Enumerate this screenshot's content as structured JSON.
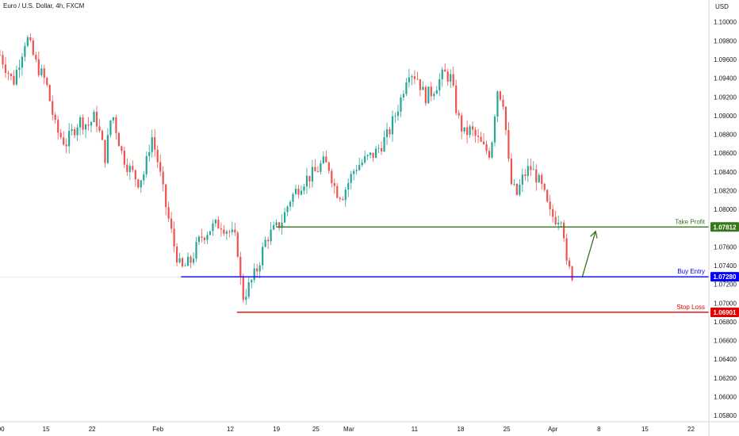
{
  "header": {
    "symbol": "Euro / U.S. Dollar, 4h, FXCM",
    "currency": "USD"
  },
  "colors": {
    "up": "#26a69a",
    "down": "#ef5350",
    "take_profit": "#38761d",
    "buy_entry": "#0000ff",
    "stop_loss": "#e00000",
    "arrow": "#38761d"
  },
  "chart_data": {
    "type": "candlestick",
    "title": "Euro / U.S. Dollar, 4h, FXCM",
    "ylim": [
      1.0575,
      1.1015
    ],
    "y_ticks": [
      "1.10000",
      "1.09800",
      "1.09600",
      "1.09400",
      "1.09200",
      "1.09000",
      "1.08800",
      "1.08600",
      "1.08400",
      "1.08200",
      "1.08000",
      "1.07600",
      "1.07400",
      "1.07200",
      "1.07000",
      "1.06800",
      "1.06600",
      "1.06400",
      "1.06200",
      "1.06000",
      "1.05800"
    ],
    "x_ticks": [
      {
        "label": ":00",
        "day": 0
      },
      {
        "label": "15",
        "day": 7
      },
      {
        "label": "22",
        "day": 14
      },
      {
        "label": "Feb",
        "day": 24
      },
      {
        "label": "12",
        "day": 35
      },
      {
        "label": "19",
        "day": 42
      },
      {
        "label": "25",
        "day": 48
      },
      {
        "label": "Mar",
        "day": 53
      },
      {
        "label": "11",
        "day": 63
      },
      {
        "label": "18",
        "day": 70
      },
      {
        "label": "25",
        "day": 77
      },
      {
        "label": "Apr",
        "day": 84
      },
      {
        "label": "8",
        "day": 91
      },
      {
        "label": "15",
        "day": 98
      },
      {
        "label": "22",
        "day": 105
      }
    ],
    "price_path": [
      [
        0,
        1.0965
      ],
      [
        2,
        1.0935
      ],
      [
        4,
        1.0985
      ],
      [
        5.5,
        1.0955
      ],
      [
        7,
        1.0935
      ],
      [
        8.5,
        1.0885
      ],
      [
        10,
        1.087
      ],
      [
        12,
        1.0895
      ],
      [
        13.5,
        1.089
      ],
      [
        14.5,
        1.09
      ],
      [
        16,
        1.0855
      ],
      [
        17,
        1.0905
      ],
      [
        18.5,
        1.086
      ],
      [
        19.5,
        1.0845
      ],
      [
        21,
        1.083
      ],
      [
        22,
        1.084
      ],
      [
        23,
        1.088
      ],
      [
        24,
        1.085
      ],
      [
        25,
        1.081
      ],
      [
        26.5,
        1.076
      ],
      [
        27.5,
        1.0735
      ],
      [
        29,
        1.0745
      ],
      [
        30.5,
        1.077
      ],
      [
        32,
        1.078
      ],
      [
        33.5,
        1.0785
      ],
      [
        35,
        1.0775
      ],
      [
        36,
        1.0765
      ],
      [
        36.8,
        1.0705
      ],
      [
        38,
        1.072
      ],
      [
        39,
        1.0735
      ],
      [
        40.5,
        1.077
      ],
      [
        42,
        1.078
      ],
      [
        43,
        1.079
      ],
      [
        44,
        1.081
      ],
      [
        45,
        1.082
      ],
      [
        46,
        1.083
      ],
      [
        47,
        1.0835
      ],
      [
        48,
        1.084
      ],
      [
        49,
        1.085
      ],
      [
        50,
        1.0845
      ],
      [
        51,
        1.082
      ],
      [
        52,
        1.0815
      ],
      [
        53,
        1.083
      ],
      [
        54,
        1.0845
      ],
      [
        55,
        1.085
      ],
      [
        56,
        1.0855
      ],
      [
        57,
        1.086
      ],
      [
        58,
        1.087
      ],
      [
        59,
        1.088
      ],
      [
        60,
        1.09
      ],
      [
        61,
        1.092
      ],
      [
        62,
        1.095
      ],
      [
        63.5,
        1.094
      ],
      [
        64.5,
        1.092
      ],
      [
        65.5,
        1.0925
      ],
      [
        66.5,
        1.0935
      ],
      [
        67.5,
        1.0945
      ],
      [
        68.5,
        1.094
      ],
      [
        69.5,
        1.09
      ],
      [
        70.5,
        1.088
      ],
      [
        71.5,
        1.0885
      ],
      [
        72.5,
        1.0875
      ],
      [
        73.5,
        1.0865
      ],
      [
        74.5,
        1.086
      ],
      [
        75,
        1.089
      ],
      [
        75.5,
        1.093
      ],
      [
        76.5,
        1.0915
      ],
      [
        77.5,
        1.083
      ],
      [
        78.5,
        1.0815
      ],
      [
        79.5,
        1.0835
      ],
      [
        80.5,
        1.0845
      ],
      [
        81.5,
        1.0835
      ],
      [
        82.5,
        1.082
      ],
      [
        83.5,
        1.0795
      ],
      [
        84.5,
        1.079
      ],
      [
        85.5,
        1.0795
      ],
      [
        86,
        1.074
      ],
      [
        87,
        1.073
      ]
    ],
    "levels": [
      {
        "name": "Take Profit",
        "value": 1.07812,
        "label": "1.07812",
        "from_day": 42
      },
      {
        "name": "Buy Entry",
        "value": 1.0728,
        "label": "1.07280",
        "from_day": 27.5
      },
      {
        "name": "Stop Loss",
        "value": 1.06901,
        "label": "1.06901",
        "from_day": 36
      }
    ],
    "annotations": [
      {
        "type": "arrow",
        "from": [
          88.5,
          1.07285
        ],
        "to": [
          90.5,
          1.07765
        ]
      }
    ],
    "grid": false
  }
}
